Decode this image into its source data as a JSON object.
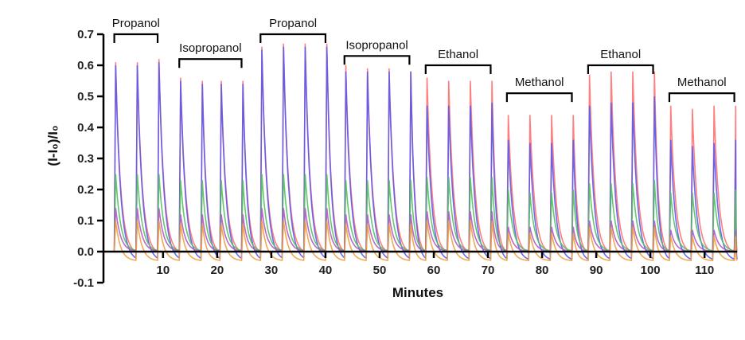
{
  "chart_data": {
    "type": "line",
    "xlabel": "Minutes",
    "ylabel": "(I-I₀)/I₀",
    "xlim": [
      -1,
      116
    ],
    "ylim": [
      -0.1,
      0.7
    ],
    "x_ticks": [
      10,
      20,
      30,
      40,
      50,
      60,
      70,
      80,
      90,
      100,
      110
    ],
    "y_ticks": [
      -0.1,
      0.0,
      0.1,
      0.2,
      0.3,
      0.4,
      0.5,
      0.6,
      0.7
    ],
    "y_tick_labels": [
      "-0.1",
      "0.0",
      "0.1",
      "0.2",
      "0.3",
      "0.4",
      "0.5",
      "0.6",
      "0.7"
    ],
    "grid": false,
    "pulse_times": [
      1,
      5,
      9,
      13,
      17,
      20.5,
      24.5,
      28,
      32,
      36,
      40,
      43.5,
      47.5,
      51.5,
      55.5,
      58.5,
      62.5,
      66.5,
      70.5,
      73.5,
      77.5,
      81.5,
      85.5,
      88.5,
      92.5,
      96.5,
      100.5,
      103.5,
      107.5,
      111.5,
      115.5
    ],
    "groups": [
      {
        "label": "Propanol",
        "x_start": 1,
        "x_end": 9,
        "bracket_y": 0.7
      },
      {
        "label": "Isopropanol",
        "x_start": 13,
        "x_end": 24.5,
        "bracket_y": 0.62
      },
      {
        "label": "Propanol",
        "x_start": 28,
        "x_end": 40,
        "bracket_y": 0.7
      },
      {
        "label": "Isopropanol",
        "x_start": 43.5,
        "x_end": 55.5,
        "bracket_y": 0.63
      },
      {
        "label": "Ethanol",
        "x_start": 58.5,
        "x_end": 70.5,
        "bracket_y": 0.6
      },
      {
        "label": "Methanol",
        "x_start": 73.5,
        "x_end": 85.5,
        "bracket_y": 0.51
      },
      {
        "label": "Ethanol",
        "x_start": 88.5,
        "x_end": 100.5,
        "bracket_y": 0.6
      },
      {
        "label": "Methanol",
        "x_start": 103.5,
        "x_end": 115.5,
        "bracket_y": 0.51
      }
    ],
    "series": [
      {
        "color": "#ff7070",
        "peaks": [
          0.61,
          0.61,
          0.62,
          0.56,
          0.55,
          0.55,
          0.55,
          0.66,
          0.67,
          0.67,
          0.67,
          0.6,
          0.59,
          0.59,
          0.58,
          0.56,
          0.55,
          0.55,
          0.55,
          0.44,
          0.44,
          0.44,
          0.44,
          0.57,
          0.58,
          0.58,
          0.58,
          0.47,
          0.46,
          0.47,
          0.47
        ],
        "floor": -0.01
      },
      {
        "color": "#5a5af0",
        "peaks": [
          0.6,
          0.6,
          0.61,
          0.55,
          0.54,
          0.54,
          0.54,
          0.65,
          0.66,
          0.66,
          0.66,
          0.58,
          0.58,
          0.58,
          0.58,
          0.47,
          0.47,
          0.47,
          0.48,
          0.36,
          0.35,
          0.35,
          0.36,
          0.47,
          0.48,
          0.48,
          0.5,
          0.36,
          0.34,
          0.35,
          0.36
        ],
        "floor": -0.03
      },
      {
        "color": "#55c060",
        "peaks": [
          0.25,
          0.25,
          0.25,
          0.23,
          0.23,
          0.23,
          0.23,
          0.25,
          0.25,
          0.25,
          0.25,
          0.23,
          0.23,
          0.23,
          0.23,
          0.24,
          0.24,
          0.24,
          0.24,
          0.2,
          0.19,
          0.19,
          0.2,
          0.22,
          0.22,
          0.22,
          0.23,
          0.19,
          0.19,
          0.19,
          0.2
        ],
        "floor": 0.0
      },
      {
        "color": "#b05ac8",
        "peaks": [
          0.14,
          0.14,
          0.14,
          0.12,
          0.12,
          0.12,
          0.12,
          0.14,
          0.14,
          0.14,
          0.14,
          0.12,
          0.12,
          0.12,
          0.12,
          0.13,
          0.13,
          0.13,
          0.13,
          0.08,
          0.08,
          0.08,
          0.08,
          0.1,
          0.1,
          0.1,
          0.1,
          0.07,
          0.07,
          0.07,
          0.07
        ],
        "floor": 0.0
      },
      {
        "color": "#f0a040",
        "peaks": [
          0.1,
          0.1,
          0.1,
          0.09,
          0.09,
          0.09,
          0.09,
          0.1,
          0.1,
          0.1,
          0.1,
          0.09,
          0.09,
          0.09,
          0.09,
          0.1,
          0.1,
          0.1,
          0.1,
          0.06,
          0.06,
          0.06,
          0.06,
          0.08,
          0.08,
          0.08,
          0.08,
          0.05,
          0.05,
          0.05,
          0.05
        ],
        "floor": -0.03
      }
    ]
  }
}
